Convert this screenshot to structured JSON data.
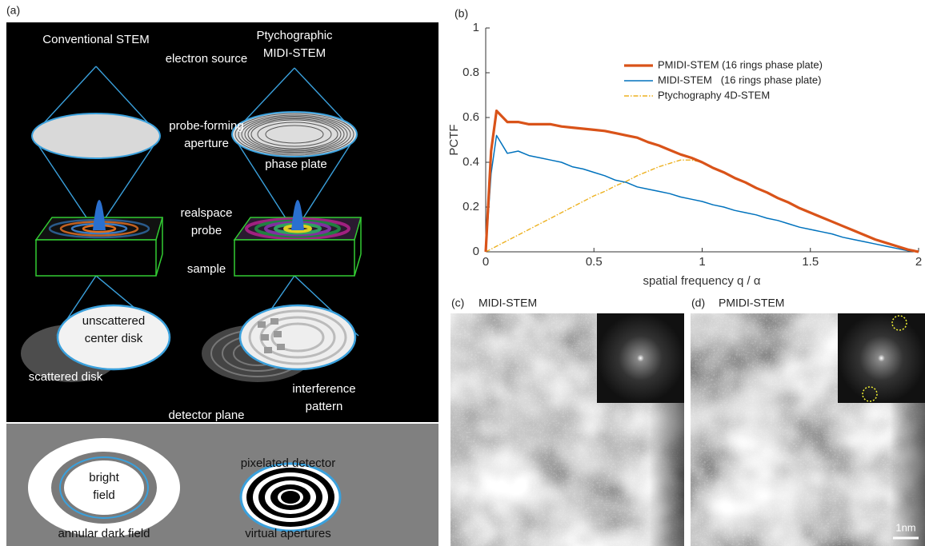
{
  "panel_a": {
    "label": "(a)",
    "left_title": "Conventional STEM",
    "right_title": [
      "Ptychographic",
      "MIDI-STEM"
    ],
    "electron_source": "electron source",
    "aperture": [
      "probe-forming",
      "aperture"
    ],
    "phase_plate": "phase plate",
    "probe": [
      "realspace",
      "probe"
    ],
    "sample": "sample",
    "center_disk": [
      "unscattered",
      "center disk"
    ],
    "scattered_disk": "scattered disk",
    "interference": [
      "interference",
      "pattern"
    ],
    "detector_plane": "detector plane",
    "pixelated_detector": "pixelated detector",
    "bright_field": [
      "bright",
      "field"
    ],
    "annular_dark_field": "annular dark field",
    "virtual_apertures": "virtual apertures"
  },
  "chart_data": {
    "type": "line",
    "label": "(b)",
    "x_label": "spatial frequency q / α",
    "y_label": "PCTF",
    "x": [
      0,
      0.025,
      0.05,
      0.1,
      0.15,
      0.2,
      0.25,
      0.3,
      0.35,
      0.4,
      0.45,
      0.5,
      0.55,
      0.6,
      0.65,
      0.7,
      0.75,
      0.8,
      0.85,
      0.9,
      0.95,
      1.0,
      1.05,
      1.1,
      1.15,
      1.2,
      1.25,
      1.3,
      1.35,
      1.4,
      1.45,
      1.5,
      1.55,
      1.6,
      1.65,
      1.7,
      1.75,
      1.8,
      1.85,
      1.9,
      1.95,
      2.0
    ],
    "series": [
      {
        "name": "PMIDI-STEM (16 rings phase plate)",
        "color": "#d95319",
        "values": [
          0,
          0.45,
          0.63,
          0.58,
          0.58,
          0.57,
          0.57,
          0.57,
          0.56,
          0.555,
          0.55,
          0.545,
          0.54,
          0.53,
          0.52,
          0.51,
          0.49,
          0.475,
          0.455,
          0.435,
          0.42,
          0.4,
          0.375,
          0.355,
          0.33,
          0.31,
          0.285,
          0.265,
          0.24,
          0.22,
          0.195,
          0.175,
          0.155,
          0.135,
          0.115,
          0.095,
          0.075,
          0.055,
          0.04,
          0.025,
          0.01,
          0
        ]
      },
      {
        "name": "MIDI-STEM   (16 rings phase plate)",
        "color": "#0072bd",
        "values": [
          0,
          0.35,
          0.52,
          0.44,
          0.45,
          0.43,
          0.42,
          0.41,
          0.4,
          0.38,
          0.37,
          0.355,
          0.34,
          0.32,
          0.31,
          0.29,
          0.28,
          0.27,
          0.26,
          0.245,
          0.235,
          0.225,
          0.21,
          0.2,
          0.185,
          0.175,
          0.165,
          0.15,
          0.14,
          0.125,
          0.11,
          0.1,
          0.09,
          0.08,
          0.065,
          0.055,
          0.045,
          0.035,
          0.025,
          0.015,
          0.005,
          0
        ]
      },
      {
        "name": "Ptychography 4D-STEM",
        "color": "#edb120",
        "values": [
          0,
          0.012,
          0.025,
          0.05,
          0.075,
          0.1,
          0.125,
          0.15,
          0.175,
          0.2,
          0.225,
          0.25,
          0.27,
          0.295,
          0.315,
          0.34,
          0.36,
          0.38,
          0.395,
          0.41,
          0.41,
          0.4,
          0.375,
          0.355,
          0.33,
          0.31,
          0.285,
          0.265,
          0.24,
          0.22,
          0.195,
          0.175,
          0.155,
          0.135,
          0.115,
          0.095,
          0.075,
          0.055,
          0.04,
          0.025,
          0.01,
          0
        ]
      }
    ],
    "xlim": [
      0,
      2
    ],
    "xticks": [
      0,
      0.5,
      1,
      1.5,
      2
    ],
    "ylim": [
      0,
      1
    ],
    "yticks": [
      0,
      0.2,
      0.4,
      0.6,
      0.8,
      1
    ],
    "grid": false,
    "legend": "upper right"
  },
  "panel_c": {
    "label": "(c)",
    "title": "MIDI-STEM"
  },
  "panel_d": {
    "label": "(d)",
    "title": "PMIDI-STEM",
    "scale_bar": "1nm"
  }
}
